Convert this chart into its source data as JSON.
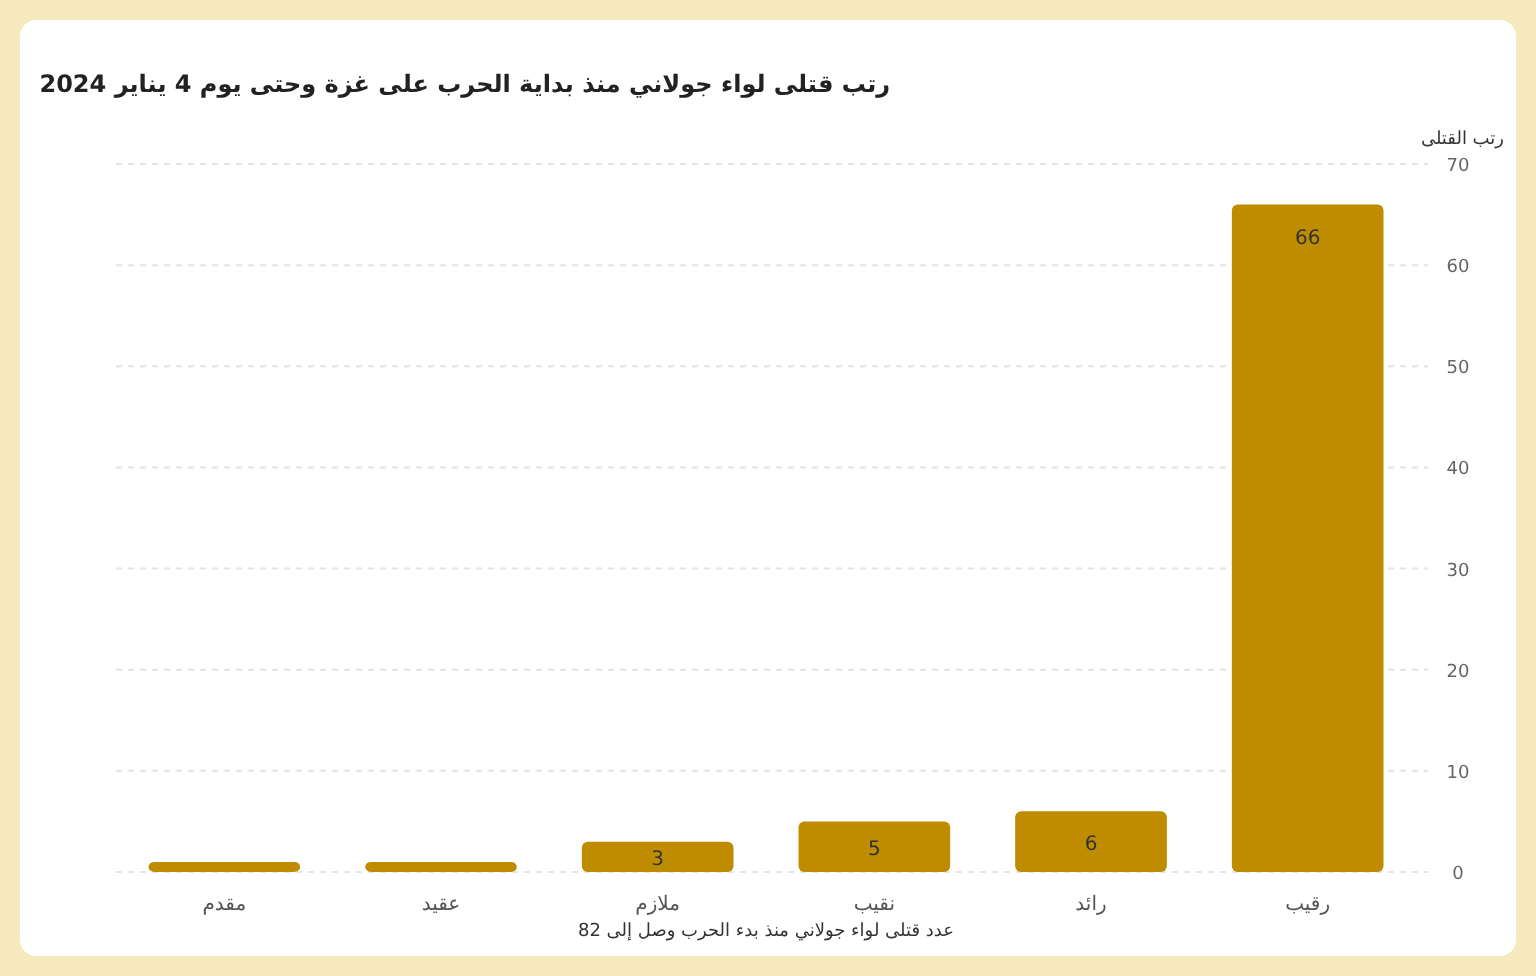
{
  "chart_data": {
    "type": "bar",
    "title": "رتب قتلى لواء جولاني منذ بداية الحرب على غزة وحتى يوم 4 يناير 2024",
    "xlabel": "عدد قتلى لواء جولاني منذ بدء الحرب وصل إلى 82",
    "ylabel": "رتب القتلى",
    "categories": [
      "مقدم",
      "عقيد",
      "ملازم",
      "نقيب",
      "رائد",
      "رقيب"
    ],
    "values": [
      1,
      1,
      3,
      5,
      6,
      66
    ],
    "value_labels": [
      null,
      null,
      "3",
      "5",
      "6",
      "66"
    ],
    "color": "#bf8c00",
    "ylim": [
      0,
      70
    ],
    "yticks": [
      0,
      10,
      20,
      30,
      40,
      50,
      60,
      70
    ],
    "grid": "y"
  }
}
